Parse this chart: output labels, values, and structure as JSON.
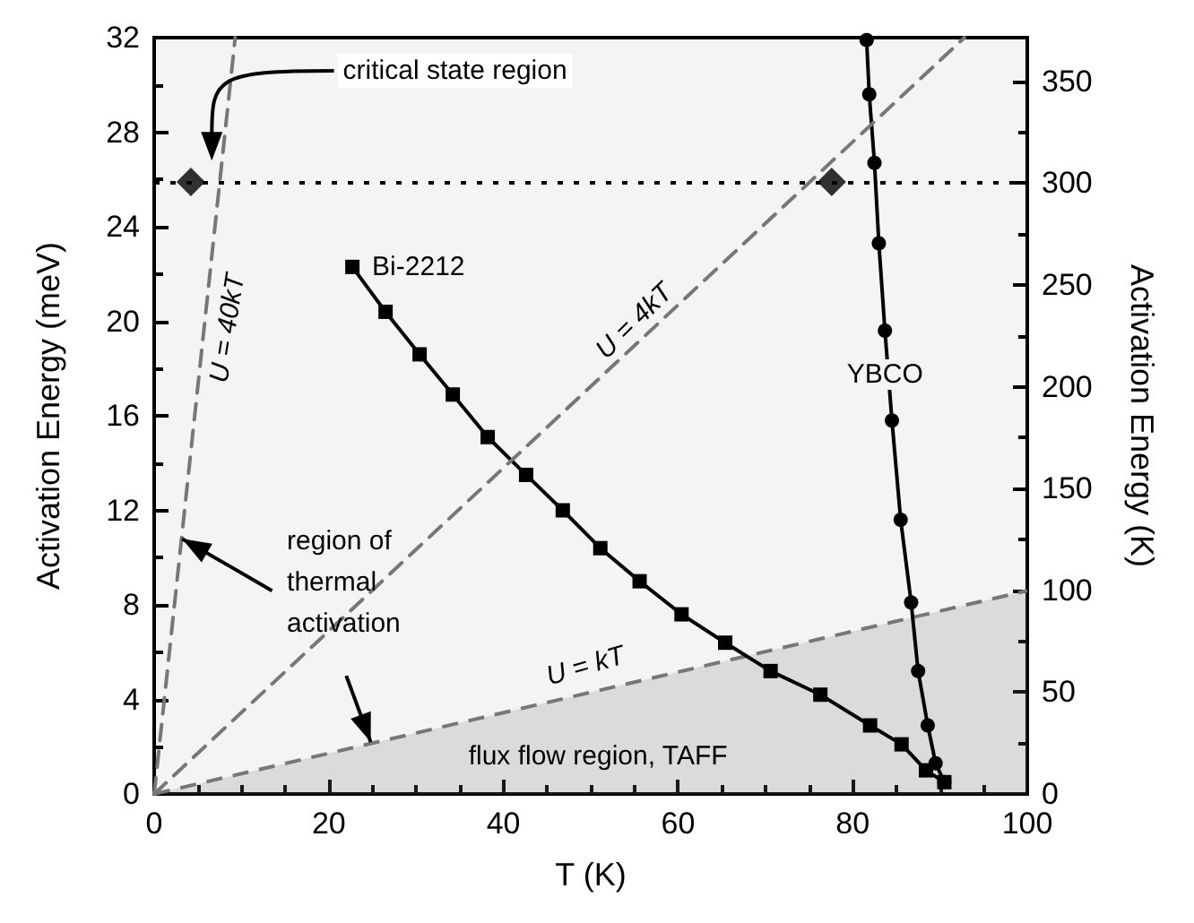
{
  "chart_data": {
    "type": "line",
    "xlabel": "T (K)",
    "ylabel": "Activation Energy (meV)",
    "y2label": "Activation Energy (K)",
    "xlim": [
      0,
      100
    ],
    "xticks": [
      0,
      20,
      40,
      60,
      80,
      100
    ],
    "ylim": [
      0,
      32
    ],
    "yticks": [
      0,
      4,
      8,
      12,
      16,
      20,
      24,
      28,
      32
    ],
    "y2lim": [
      0,
      371.4
    ],
    "y2ticks": [
      0,
      50,
      100,
      150,
      200,
      250,
      300,
      350
    ],
    "grid": false,
    "legend": false,
    "series": [
      {
        "name": "Bi-2212",
        "color": "#000000",
        "marker": "square",
        "line_style": "solid",
        "x": [
          22.7,
          26.5,
          30.4,
          34.2,
          38.2,
          42.6,
          46.8,
          51.1,
          55.6,
          60.4,
          65.4,
          70.6,
          76.3,
          82.0,
          85.6,
          88.4,
          90.5
        ],
        "values": [
          22.3,
          20.4,
          18.6,
          16.9,
          15.1,
          13.5,
          12.0,
          10.4,
          9.0,
          7.6,
          6.4,
          5.2,
          4.2,
          2.9,
          2.1,
          1.0,
          0.5
        ]
      },
      {
        "name": "YBCO",
        "color": "#000000",
        "marker": "circle",
        "line_style": "solid",
        "x": [
          81.6,
          81.9,
          82.5,
          83.0,
          83.7,
          84.5,
          85.5,
          86.7,
          87.5,
          88.6,
          89.5,
          90.5
        ],
        "values": [
          31.9,
          29.6,
          26.7,
          23.3,
          19.6,
          15.8,
          11.6,
          8.1,
          5.2,
          2.9,
          1.3,
          0.5
        ]
      },
      {
        "type": "scatter",
        "color": "#000000",
        "marker": "diamond",
        "x": [
          4.2,
          77.6
        ],
        "values": [
          25.9,
          25.9
        ]
      },
      {
        "type": "area",
        "color": "#777777",
        "marker": "none",
        "line_style": "dashed",
        "x": [
          0,
          100
        ],
        "values": [
          0,
          8.6
        ]
      },
      {
        "color": "#777777",
        "marker": "none",
        "line_style": "dashed",
        "x": [
          0,
          92.8
        ],
        "values": [
          0,
          32
        ]
      },
      {
        "color": "#777777",
        "marker": "none",
        "line_style": "dashed",
        "x": [
          0,
          9.28
        ],
        "values": [
          0,
          32
        ]
      }
    ],
    "ref_lines": [
      {
        "axis": "y2",
        "value": 300,
        "color": "#000000",
        "line_style": "dotted"
      }
    ],
    "annotations": [
      "U = 40kT",
      "U = 4kT",
      "U = kT",
      "critical state region",
      {
        "text": "region of thermal activation",
        "x": 3.2,
        "y": 10.8
      },
      "flux flow region, TAFF"
    ]
  }
}
